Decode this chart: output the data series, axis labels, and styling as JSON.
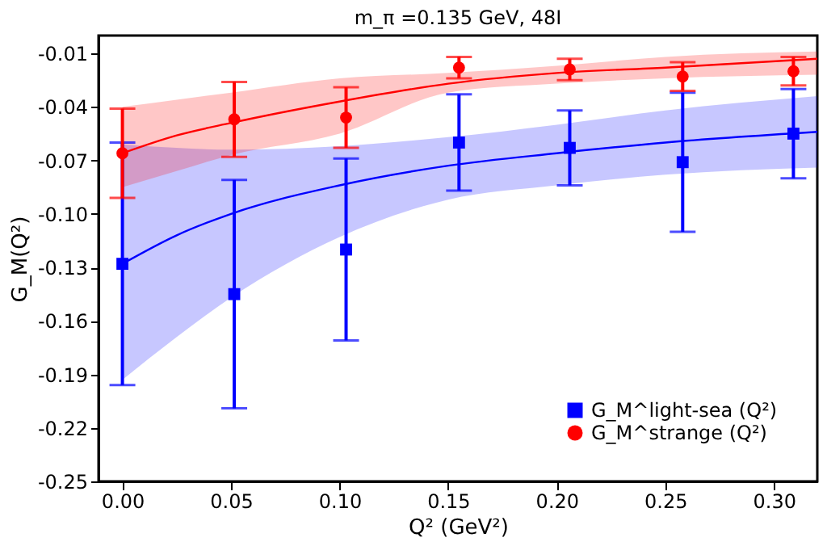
{
  "chart_data": {
    "type": "scatter",
    "title": "m_π =0.135 GeV, 48I",
    "xlabel": "Q² (GeV²)",
    "ylabel": "G_M(Q²)",
    "x": [
      0.0,
      0.0515,
      0.103,
      0.155,
      0.206,
      0.258,
      0.309
    ],
    "series": [
      {
        "name": "G_M^light-sea (Q²)",
        "color": "#0000ff",
        "marker": "square",
        "values": [
          -0.128,
          -0.145,
          -0.12,
          -0.06,
          -0.063,
          -0.071,
          -0.055
        ],
        "errors": [
          0.068,
          0.064,
          0.051,
          0.027,
          0.021,
          0.039,
          0.025
        ]
      },
      {
        "name": "G_M^strange (Q²)",
        "color": "#ff0000",
        "marker": "circle",
        "values": [
          -0.066,
          -0.047,
          -0.046,
          -0.018,
          -0.019,
          -0.023,
          -0.02
        ],
        "errors": [
          0.025,
          0.021,
          0.017,
          0.006,
          0.006,
          0.008,
          0.008
        ]
      },
      {
        "type": "line",
        "color": "#0000ff",
        "x": [
          0.0,
          0.025,
          0.05,
          0.1,
          0.15,
          0.2,
          0.25,
          0.32
        ],
        "values": [
          -0.128,
          -0.112,
          -0.1,
          -0.084,
          -0.073,
          -0.066,
          -0.06,
          -0.054
        ],
        "lower": [
          -0.193,
          -0.169,
          -0.147,
          -0.113,
          -0.092,
          -0.084,
          -0.078,
          -0.074
        ],
        "upper": [
          -0.061,
          -0.063,
          -0.064,
          -0.062,
          -0.057,
          -0.05,
          -0.042,
          -0.034
        ]
      },
      {
        "type": "line",
        "color": "#ff0000",
        "x": [
          0.0,
          0.025,
          0.05,
          0.1,
          0.15,
          0.2,
          0.25,
          0.32
        ],
        "values": [
          -0.066,
          -0.056,
          -0.049,
          -0.037,
          -0.027,
          -0.021,
          -0.018,
          -0.013
        ],
        "lower": [
          -0.085,
          -0.076,
          -0.067,
          -0.055,
          -0.032,
          -0.027,
          -0.024,
          -0.022
        ],
        "upper": [
          -0.04,
          -0.036,
          -0.032,
          -0.024,
          -0.021,
          -0.017,
          -0.012,
          -0.009
        ]
      }
    ],
    "xlim": [
      -0.011,
      0.32
    ],
    "ylim": [
      -0.25,
      0.0
    ],
    "xticks": [
      {
        "value": 0.0,
        "label": "0.00"
      },
      {
        "value": 0.05,
        "label": "0.05"
      },
      {
        "value": 0.1,
        "label": "0.10"
      },
      {
        "value": 0.15,
        "label": "0.15"
      },
      {
        "value": 0.2,
        "label": "0.20"
      },
      {
        "value": 0.25,
        "label": "0.25"
      },
      {
        "value": 0.3,
        "label": "0.30"
      }
    ],
    "yticks": [
      -0.25,
      -0.22,
      -0.19,
      -0.16,
      -0.13,
      {
        "value": -0.1,
        "label": "-0.10"
      },
      -0.07,
      -0.04,
      -0.01
    ],
    "grid": false,
    "legend": "bottom right"
  }
}
